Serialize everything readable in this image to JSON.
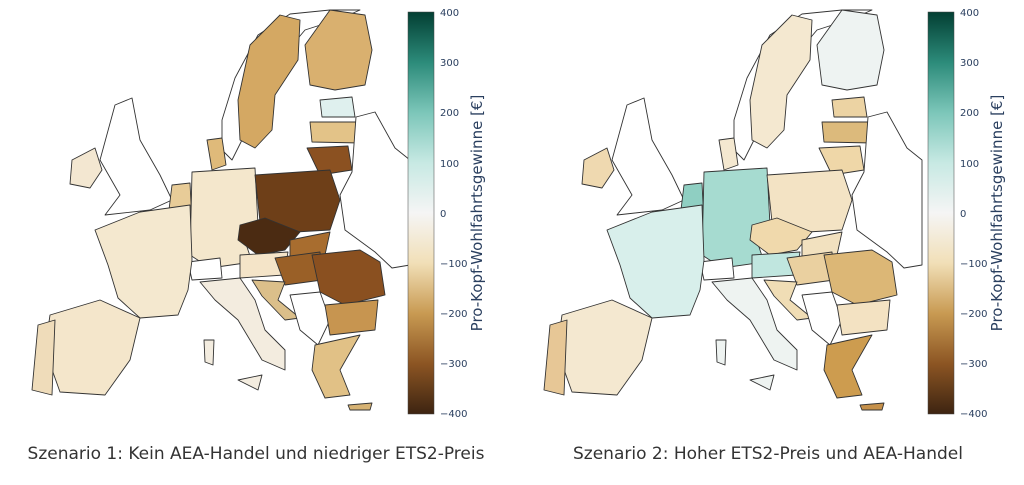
{
  "panels": [
    {
      "caption": "Szenario 1: Kein AEA-Handel und niedriger ETS2-Preis",
      "colorbar_title": "Pro-Kopf-Wohlfahrtsgewinne [€]",
      "ticks": [
        "400",
        "300",
        "200",
        "100",
        "0",
        "−100",
        "−200",
        "−300",
        "−400"
      ]
    },
    {
      "caption": "Szenario 2: Hoher ETS2-Preis und AEA-Handel",
      "colorbar_title": "Pro-Kopf-Wohlfahrtsgewinne [€]",
      "ticks": [
        "400",
        "300",
        "200",
        "100",
        "0",
        "−100",
        "−200",
        "−300",
        "−400"
      ]
    }
  ],
  "colorscale": {
    "range": [
      -400,
      400
    ],
    "stops": [
      "#3d2411",
      "#8c5523",
      "#c89a52",
      "#f1dfb7",
      "#f5f5f5",
      "#c7e9e3",
      "#7cc6b9",
      "#2c8b7a",
      "#033f33"
    ]
  }
}
